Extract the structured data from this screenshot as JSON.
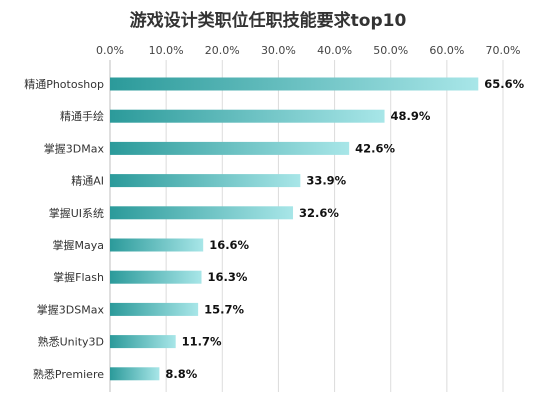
{
  "chart_data": {
    "type": "bar",
    "orientation": "horizontal",
    "title": "游戏设计类职位任职技能要求top10",
    "xlabel": "",
    "ylabel": "",
    "xlim": [
      0,
      70
    ],
    "x_ticks": [
      "0.0%",
      "10.0%",
      "20.0%",
      "30.0%",
      "40.0%",
      "50.0%",
      "60.0%",
      "70.0%"
    ],
    "x_axis_position": "top",
    "grid": true,
    "legend": "none",
    "categories": [
      "精通Photoshop",
      "精通手绘",
      "掌握3DMax",
      "精通AI",
      "掌握UI系统",
      "掌握Maya",
      "掌握Flash",
      "掌握3DSMax",
      "熟悉Unity3D",
      "熟悉Premiere"
    ],
    "values": [
      65.6,
      48.9,
      42.6,
      33.9,
      32.6,
      16.6,
      16.3,
      15.7,
      11.7,
      8.8
    ],
    "value_labels": [
      "65.6%",
      "48.9%",
      "42.6%",
      "33.9%",
      "32.6%",
      "16.6%",
      "16.3%",
      "15.7%",
      "11.7%",
      "8.8%"
    ],
    "colors": {
      "bar_start": "#2b9a9a",
      "bar_end": "#a8e6e8"
    }
  }
}
